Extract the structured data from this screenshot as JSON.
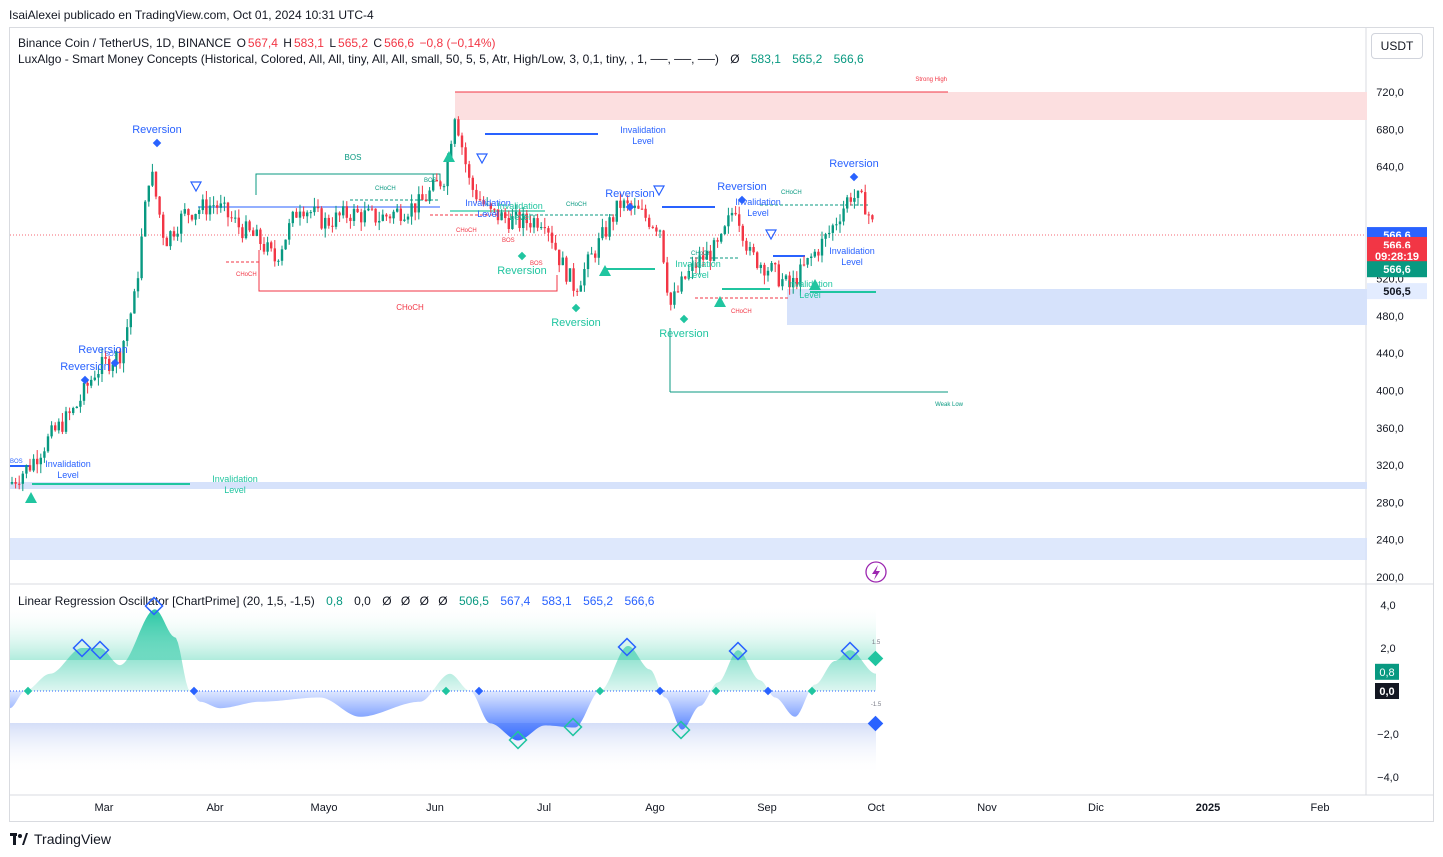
{
  "header": {
    "published": "IsaiAlexei publicado en TradingView.com, Oct 01, 2024 10:31 UTC-4",
    "symbol": "Binance Coin / TetherUS, 1D, BINANCE",
    "o_label": "O",
    "o_value": "567,4",
    "h_label": "H",
    "h_value": "583,1",
    "l_label": "L",
    "l_value": "565,2",
    "c_label": "C",
    "c_value": "566,6",
    "change": "−0,8 (−0,14%)",
    "indicator": "LuxAlgo - Smart Money Concepts (Historical, Colored, All, All, tiny, All, All, small, 50, 5, 5, Atr, High/Low, 3, 0,1, tiny, , 1, ──, ──, ──)",
    "indicator_values": [
      "Ø",
      "583,1",
      "565,2",
      "566,6"
    ],
    "currency": "USDT"
  },
  "oscillator": {
    "title": "Linear Regression Oscillator [ChartPrime] (20, 1,5, -1,5)",
    "values": [
      "0,8",
      "0,0",
      "Ø",
      "Ø",
      "Ø",
      "Ø",
      "506,5",
      "567,4",
      "583,1",
      "565,2",
      "566,6"
    ],
    "level_up": "1.5",
    "level_down": "-1.5",
    "ticks": [
      "4,0",
      "2,0",
      "−2,0",
      "−4,0"
    ],
    "tick_values": [
      4,
      2,
      -2,
      -4
    ],
    "badge_value": "0,8",
    "badge_zero": "0,0"
  },
  "price_axis": {
    "ticks": [
      "720,0",
      "680,0",
      "640,0",
      "520,0",
      "480,0",
      "440,0",
      "400,0",
      "360,0",
      "320,0",
      "280,0",
      "240,0",
      "200,0"
    ],
    "tick_values": [
      720,
      680,
      640,
      520,
      480,
      440,
      400,
      360,
      320,
      280,
      240,
      200
    ],
    "badges": [
      {
        "text": "566,6",
        "color": "#2962ff",
        "value": 566.6
      },
      {
        "text": "566,6",
        "color": "#f23645",
        "value": 556
      },
      {
        "text": "09:28:19",
        "color": "#f23645",
        "value": 544
      },
      {
        "text": "566,6",
        "color": "#089981",
        "value": 530
      },
      {
        "text": "506,5",
        "color": "#e3ecff",
        "value": 506.5
      }
    ]
  },
  "time_axis": {
    "labels": [
      "Mar",
      "Abr",
      "Mayo",
      "Jun",
      "Jul",
      "Ago",
      "Sep",
      "Oct",
      "Nov",
      "Dic",
      "2025",
      "Feb"
    ]
  },
  "annotations": {
    "strong_high": "Strong High",
    "weak_low": "Weak Low",
    "reversion": "Reversion",
    "invalidation": "Invalidation",
    "level": "Level",
    "bos": "BOS",
    "choch": "CHoCH",
    "choch_small": "CHoCH"
  },
  "colors": {
    "up": "#089981",
    "down": "#f23645",
    "blue": "#2962ff",
    "teal_signal": "#20c5a0",
    "zone_red": "#fbdadb",
    "zone_blue": "#d5e2fb"
  },
  "branding": {
    "logo": "TradingView"
  },
  "chart_data": {
    "type": "line",
    "title": "Binance Coin / TetherUS, 1D, BINANCE",
    "x": [
      "Feb",
      "Mar",
      "Abr",
      "Mayo",
      "Jun",
      "Jul",
      "Ago",
      "Sep",
      "Oct"
    ],
    "series": [
      {
        "name": "Binance Coin / TetherUS",
        "values": [
          300,
          410,
          590,
          590,
          600,
          590,
          560,
          510,
          567
        ]
      }
    ],
    "ylim": [
      190,
      735
    ],
    "ohlc_last": {
      "open": 567.4,
      "high": 583.1,
      "low": 565.2,
      "close": 566.6
    }
  }
}
